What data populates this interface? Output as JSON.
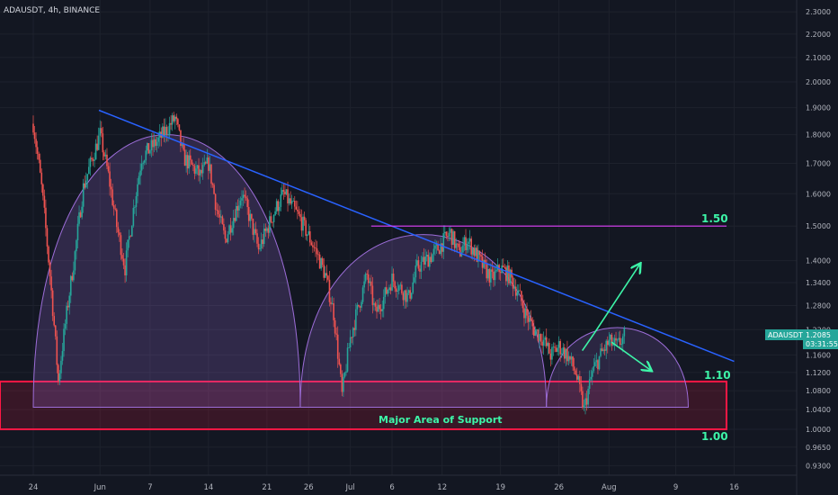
{
  "chart_data": {
    "type": "candlestick",
    "title": "ADAUSDT, 4h, BINANCE",
    "symbol_tag": "ADAUSDT",
    "price_tag": "1.2085",
    "countdown": "03:31:55",
    "y_axis": {
      "scale": "log",
      "range": [
        0.92,
        2.33
      ],
      "ticks": [
        "2.3000",
        "2.2000",
        "2.1000",
        "2.0000",
        "1.9000",
        "1.8000",
        "1.7000",
        "1.6000",
        "1.5000",
        "1.4000",
        "1.3400",
        "1.2800",
        "1.2200",
        "1.1600",
        "1.1200",
        "1.0800",
        "1.0400",
        "1.0000",
        "0.9650",
        "0.9300"
      ]
    },
    "x_axis": {
      "labels": [
        "24",
        "Jun",
        "7",
        "14",
        "21",
        "26",
        "Jul",
        "6",
        "12",
        "19",
        "26",
        "Aug",
        "9",
        "16"
      ]
    },
    "price_path": [
      [
        0,
        1.84
      ],
      [
        1,
        1.62
      ],
      [
        3,
        1.1
      ],
      [
        5,
        1.42
      ],
      [
        6,
        1.62
      ],
      [
        8,
        1.8
      ],
      [
        9,
        1.66
      ],
      [
        10,
        1.5
      ],
      [
        11,
        1.38
      ],
      [
        12,
        1.55
      ],
      [
        13,
        1.72
      ],
      [
        15,
        1.78
      ],
      [
        17,
        1.86
      ],
      [
        18,
        1.72
      ],
      [
        20,
        1.66
      ],
      [
        21,
        1.7
      ],
      [
        22,
        1.55
      ],
      [
        23,
        1.46
      ],
      [
        25,
        1.6
      ],
      [
        26,
        1.52
      ],
      [
        27,
        1.43
      ],
      [
        29,
        1.55
      ],
      [
        30,
        1.6
      ],
      [
        32,
        1.52
      ],
      [
        34,
        1.42
      ],
      [
        35,
        1.36
      ],
      [
        36,
        1.26
      ],
      [
        37,
        1.07
      ],
      [
        38,
        1.2
      ],
      [
        39,
        1.28
      ],
      [
        40,
        1.36
      ],
      [
        41,
        1.26
      ],
      [
        42,
        1.3
      ],
      [
        43,
        1.35
      ],
      [
        45,
        1.3
      ],
      [
        46,
        1.38
      ],
      [
        48,
        1.42
      ],
      [
        49,
        1.45
      ],
      [
        50,
        1.48
      ],
      [
        51,
        1.42
      ],
      [
        52,
        1.46
      ],
      [
        54,
        1.38
      ],
      [
        55,
        1.35
      ],
      [
        56,
        1.38
      ],
      [
        57,
        1.36
      ],
      [
        58,
        1.32
      ],
      [
        59,
        1.26
      ],
      [
        60,
        1.22
      ],
      [
        61,
        1.2
      ],
      [
        62,
        1.16
      ],
      [
        63,
        1.18
      ],
      [
        64,
        1.16
      ],
      [
        65,
        1.12
      ],
      [
        66,
        1.04
      ],
      [
        67,
        1.12
      ],
      [
        68,
        1.16
      ],
      [
        69,
        1.19
      ],
      [
        70,
        1.18
      ],
      [
        71,
        1.21
      ]
    ],
    "trendline": {
      "color": "#2962ff"
    },
    "resistance_line": {
      "level": 1.5,
      "label": "1.50",
      "color": "#e040fb"
    },
    "support_zone": {
      "top": 1.1,
      "bottom": 1.0,
      "label": "Major Area of Support",
      "top_label": "1.10",
      "bottom_label": "1.00",
      "color": "#ff1744"
    },
    "arcs": {
      "count": 3,
      "projected": 1,
      "color": "#9c6dd8"
    },
    "projection_arrows": {
      "up": "up-scenario",
      "down": "down-scenario",
      "color": "#3df5a8"
    },
    "colors": {
      "up": "#26a69a",
      "down": "#ef5350",
      "bg": "#131722",
      "grid": "#1e222d"
    }
  }
}
